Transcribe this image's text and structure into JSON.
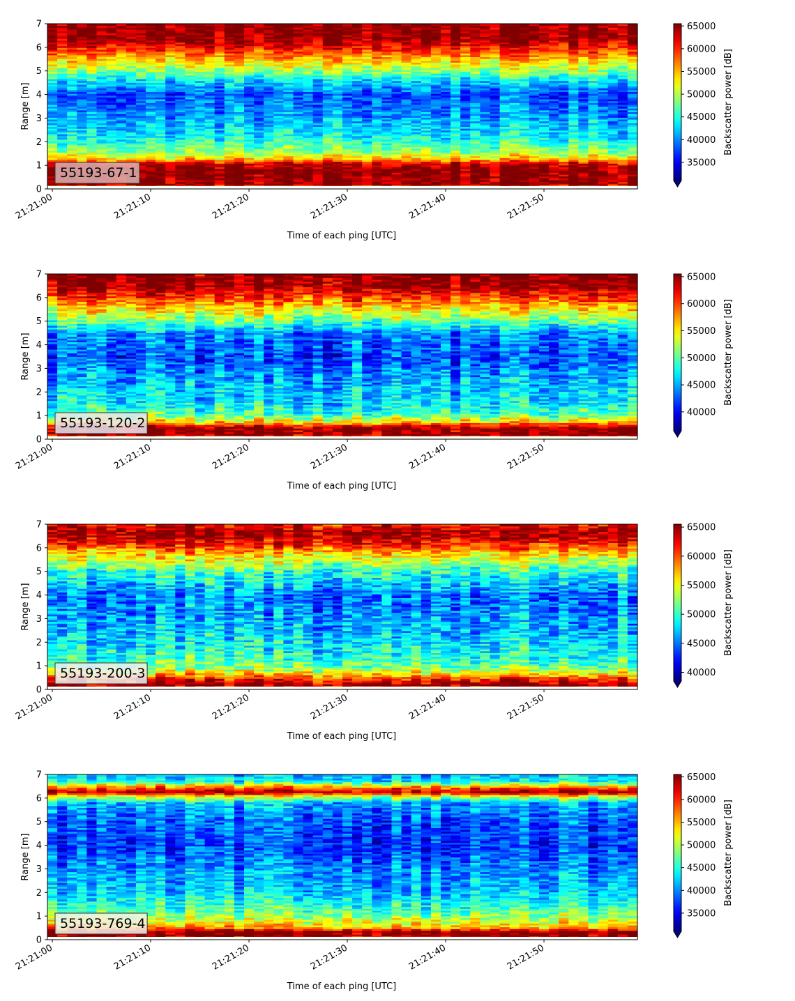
{
  "figure": {
    "background": "#ffffff",
    "colormap": "jet",
    "colorbar_extend": "min",
    "color_nan": "#ffffff"
  },
  "chart_data": [
    {
      "type": "heatmap",
      "label": "55193-67-1",
      "label_box_color": "#dbb1b1",
      "xlabel": "Time of each ping [UTC]",
      "ylabel": "Range [m]",
      "colorbar_label": "Backscatter power [dB]",
      "x_range": [
        "21:20:59.5",
        "21:21:59.5"
      ],
      "xticks": [
        "21:21:00",
        "21:21:10",
        "21:21:20",
        "21:21:30",
        "21:21:40",
        "21:21:50"
      ],
      "ylim": [
        0,
        7
      ],
      "yticks": [
        "0",
        "1",
        "2",
        "3",
        "4",
        "5",
        "6",
        "7"
      ],
      "clim": [
        31000,
        65500
      ],
      "cbar_ticks": [
        "35000",
        "40000",
        "45000",
        "50000",
        "55000",
        "60000",
        "65000"
      ],
      "cbar_tick_values": [
        35000,
        40000,
        45000,
        50000,
        55000,
        60000,
        65000
      ],
      "depth_profile": [
        [
          0.05,
          50000
        ],
        [
          0.2,
          65000
        ],
        [
          0.9,
          65000
        ],
        [
          1.1,
          62000
        ],
        [
          1.3,
          54000
        ],
        [
          1.6,
          49000
        ],
        [
          2.2,
          44000
        ],
        [
          3.0,
          41000
        ],
        [
          4.0,
          38000
        ],
        [
          4.6,
          43000
        ],
        [
          5.0,
          49000
        ],
        [
          5.6,
          56000
        ],
        [
          6.0,
          61000
        ],
        [
          6.4,
          65000
        ],
        [
          7.0,
          65000
        ]
      ],
      "noise": 4500
    },
    {
      "type": "heatmap",
      "label": "55193-120-2",
      "label_box_color": "#e7e7ef",
      "xlabel": "Time of each ping [UTC]",
      "ylabel": "Range [m]",
      "colorbar_label": "Backscatter power [dB]",
      "x_range": [
        "21:20:59.5",
        "21:21:59.5"
      ],
      "xticks": [
        "21:21:00",
        "21:21:10",
        "21:21:20",
        "21:21:30",
        "21:21:40",
        "21:21:50"
      ],
      "ylim": [
        0,
        7
      ],
      "yticks": [
        "0",
        "1",
        "2",
        "3",
        "4",
        "5",
        "6",
        "7"
      ],
      "clim": [
        36500,
        65500
      ],
      "cbar_ticks": [
        "40000",
        "45000",
        "50000",
        "55000",
        "60000",
        "65000"
      ],
      "cbar_tick_values": [
        40000,
        45000,
        50000,
        55000,
        60000,
        65000
      ],
      "depth_profile": [
        [
          0.05,
          55000
        ],
        [
          0.2,
          65000
        ],
        [
          0.5,
          65000
        ],
        [
          0.7,
          57000
        ],
        [
          1.0,
          50000
        ],
        [
          1.5,
          47000
        ],
        [
          2.5,
          45000
        ],
        [
          3.5,
          42000
        ],
        [
          4.5,
          44000
        ],
        [
          5.0,
          50000
        ],
        [
          5.5,
          55000
        ],
        [
          6.0,
          60000
        ],
        [
          6.5,
          65000
        ],
        [
          7.0,
          65000
        ]
      ],
      "noise": 4500
    },
    {
      "type": "heatmap",
      "label": "55193-200-3",
      "label_box_color": "#f0f0f2",
      "xlabel": "Time of each ping [UTC]",
      "ylabel": "Range [m]",
      "colorbar_label": "Backscatter power [dB]",
      "x_range": [
        "21:20:59.5",
        "21:21:59.5"
      ],
      "xticks": [
        "21:21:00",
        "21:21:10",
        "21:21:20",
        "21:21:30",
        "21:21:40",
        "21:21:50"
      ],
      "ylim": [
        0,
        7
      ],
      "yticks": [
        "0",
        "1",
        "2",
        "3",
        "4",
        "5",
        "6",
        "7"
      ],
      "clim": [
        38500,
        65500
      ],
      "cbar_ticks": [
        "40000",
        "45000",
        "50000",
        "55000",
        "60000",
        "65000"
      ],
      "cbar_tick_values": [
        40000,
        45000,
        50000,
        55000,
        60000,
        65000
      ],
      "depth_profile": [
        [
          0.05,
          60000
        ],
        [
          0.2,
          65000
        ],
        [
          0.4,
          62000
        ],
        [
          0.7,
          56000
        ],
        [
          1.0,
          51000
        ],
        [
          2.0,
          48000
        ],
        [
          3.0,
          46000
        ],
        [
          4.0,
          45000
        ],
        [
          5.0,
          50000
        ],
        [
          5.7,
          56000
        ],
        [
          6.2,
          62000
        ],
        [
          6.6,
          65000
        ],
        [
          7.0,
          62000
        ]
      ],
      "noise": 4500
    },
    {
      "type": "heatmap",
      "label": "55193-769-4",
      "label_box_color": "#f2f2ea",
      "xlabel": "Time of each ping [UTC]",
      "ylabel": "Range [m]",
      "colorbar_label": "Backscatter power [dB]",
      "x_range": [
        "21:20:59.5",
        "21:21:59.5"
      ],
      "xticks": [
        "21:21:00",
        "21:21:10",
        "21:21:20",
        "21:21:30",
        "21:21:40",
        "21:21:50"
      ],
      "ylim": [
        0,
        7
      ],
      "yticks": [
        "0",
        "1",
        "2",
        "3",
        "4",
        "5",
        "6",
        "7"
      ],
      "clim": [
        31000,
        65500
      ],
      "cbar_ticks": [
        "35000",
        "40000",
        "45000",
        "50000",
        "55000",
        "60000",
        "65000"
      ],
      "cbar_tick_values": [
        35000,
        40000,
        45000,
        50000,
        55000,
        60000,
        65000
      ],
      "depth_profile": [
        [
          0.05,
          55000
        ],
        [
          0.15,
          65000
        ],
        [
          0.35,
          65000
        ],
        [
          0.5,
          56000
        ],
        [
          0.8,
          51000
        ],
        [
          1.2,
          47000
        ],
        [
          2.0,
          42000
        ],
        [
          3.0,
          40000
        ],
        [
          4.0,
          37000
        ],
        [
          5.0,
          38000
        ],
        [
          5.8,
          41000
        ],
        [
          6.1,
          52000
        ],
        [
          6.25,
          64000
        ],
        [
          6.45,
          58000
        ],
        [
          6.7,
          44000
        ],
        [
          7.0,
          41000
        ]
      ],
      "noise": 4800
    }
  ]
}
